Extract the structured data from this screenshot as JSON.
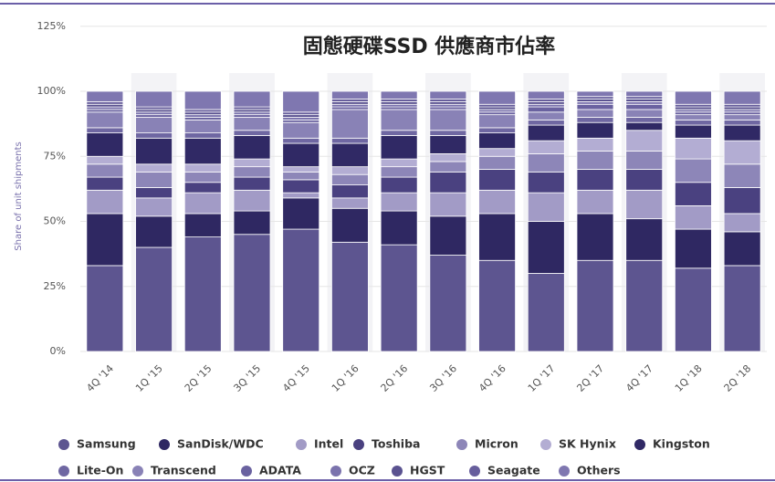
{
  "chart_data": {
    "type": "stacked_bar",
    "title": "固態硬碟SSD 供應商市佔率",
    "y_label": "Share of unit shipments",
    "categories": [
      "4Q '14",
      "1Q '15",
      "2Q '15",
      "3Q '15",
      "4Q '15",
      "1Q '16",
      "2Q '16",
      "3Q '16",
      "4Q '16",
      "1Q '17",
      "2Q '17",
      "4Q '17",
      "1Q '18",
      "2Q '18"
    ],
    "series": [
      {
        "name": "Samsung",
        "color": "#5d5590",
        "values": [
          33,
          40,
          44,
          45,
          47,
          42,
          41,
          37,
          35,
          30,
          35,
          35,
          32,
          33
        ]
      },
      {
        "name": "SanDisk/WDC",
        "color": "#2f2862",
        "values": [
          20,
          12,
          9,
          9,
          12,
          13,
          13,
          15,
          18,
          20,
          18,
          16,
          15,
          13
        ]
      },
      {
        "name": "Intel",
        "color": "#a29bc6",
        "values": [
          9,
          7,
          8,
          8,
          2,
          4,
          7,
          9,
          9,
          11,
          9,
          11,
          9,
          7
        ]
      },
      {
        "name": "Toshiba",
        "color": "#4a4180",
        "values": [
          5,
          4,
          4,
          5,
          5,
          5,
          6,
          8,
          8,
          8,
          8,
          8,
          9,
          10
        ]
      },
      {
        "name": "Micron",
        "color": "#8d86b8",
        "values": [
          5,
          6,
          4,
          4,
          3,
          4,
          4,
          4,
          5,
          7,
          7,
          7,
          9,
          9
        ]
      },
      {
        "name": "SK Hynix",
        "color": "#b3add3",
        "values": [
          3,
          3,
          3,
          3,
          2,
          3,
          3,
          3,
          3,
          5,
          5,
          8,
          8,
          9
        ]
      },
      {
        "name": "Kingston",
        "color": "#302965",
        "values": [
          9,
          10,
          10,
          9,
          9,
          9,
          9,
          7,
          6,
          6,
          6,
          3,
          5,
          6
        ]
      },
      {
        "name": "Lite-On",
        "color": "#6f67a2",
        "values": [
          2,
          2,
          2,
          2,
          2,
          2,
          2,
          2,
          2,
          2,
          2,
          2,
          2,
          2
        ]
      },
      {
        "name": "Transcend",
        "color": "#8982b6",
        "values": [
          6,
          6,
          5,
          5,
          6,
          11,
          8,
          8,
          5,
          3,
          3,
          3,
          2,
          2
        ]
      },
      {
        "name": "ADATA",
        "color": "#6a62a0",
        "values": [
          1,
          1,
          1,
          1,
          1,
          1,
          1,
          1,
          1,
          2,
          2,
          2,
          1,
          1
        ]
      },
      {
        "name": "OCZ",
        "color": "#7b73ad",
        "values": [
          1,
          1,
          1,
          1,
          1,
          1,
          1,
          1,
          1,
          1,
          1,
          1,
          1,
          1
        ]
      },
      {
        "name": "HGST",
        "color": "#5a5290",
        "values": [
          1,
          1,
          1,
          1,
          1,
          1,
          1,
          1,
          1,
          1,
          1,
          1,
          1,
          1
        ]
      },
      {
        "name": "Seagate",
        "color": "#675e9c",
        "values": [
          1,
          1,
          1,
          1,
          1,
          1,
          1,
          1,
          1,
          1,
          1,
          1,
          1,
          1
        ]
      },
      {
        "name": "Others",
        "color": "#7f77b0",
        "values": [
          4,
          6,
          7,
          6,
          8,
          3,
          3,
          3,
          5,
          3,
          2,
          2,
          5,
          5
        ]
      }
    ],
    "ylim": [
      0,
      125
    ],
    "yticks": [
      {
        "value": 0,
        "label": "0%"
      },
      {
        "value": 25,
        "label": "25%"
      },
      {
        "value": 50,
        "label": "50%"
      },
      {
        "value": 75,
        "label": "75%"
      },
      {
        "value": 100,
        "label": "100%"
      },
      {
        "value": 125,
        "label": "125%"
      }
    ],
    "grid": true
  }
}
